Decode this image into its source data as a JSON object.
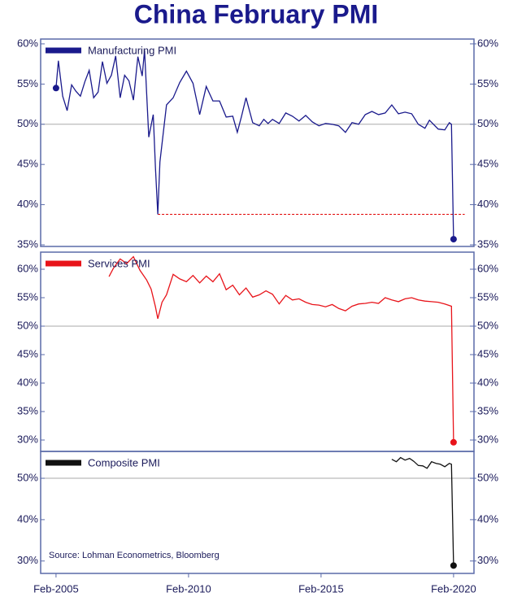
{
  "chart_data": [
    {
      "type": "line",
      "title": "China February PMI",
      "x": [
        2005.08,
        2005.17,
        2005.33,
        2005.5,
        2005.67,
        2005.83,
        2006.0,
        2006.17,
        2006.33,
        2006.5,
        2006.67,
        2006.83,
        2007.0,
        2007.17,
        2007.33,
        2007.5,
        2007.67,
        2007.83,
        2008.0,
        2008.17,
        2008.33,
        2008.42,
        2008.58,
        2008.75,
        2008.83,
        2008.92,
        2009.0,
        2009.25,
        2009.5,
        2009.75,
        2010.0,
        2010.25,
        2010.5,
        2010.75,
        2011.0,
        2011.25,
        2011.5,
        2011.75,
        2011.92,
        2012.08,
        2012.25,
        2012.5,
        2012.75,
        2012.92,
        2013.08,
        2013.25,
        2013.5,
        2013.75,
        2014.0,
        2014.25,
        2014.5,
        2014.75,
        2015.0,
        2015.25,
        2015.5,
        2015.75,
        2016.0,
        2016.25,
        2016.5,
        2016.75,
        2017.0,
        2017.25,
        2017.5,
        2017.75,
        2018.0,
        2018.25,
        2018.5,
        2018.75,
        2019.0,
        2019.17,
        2019.5,
        2019.75,
        2019.92,
        2020.0,
        2020.08
      ],
      "series": [
        {
          "name": "Manufacturing PMI",
          "color": "#1a1a8c",
          "values": [
            54.5,
            57.9,
            53.5,
            51.7,
            54.9,
            54.1,
            53.5,
            55.3,
            56.7,
            53.3,
            54.0,
            57.8,
            55.1,
            56.1,
            58.5,
            53.3,
            56.1,
            55.4,
            53.0,
            58.4,
            56.0,
            59.2,
            48.4,
            51.2,
            44.6,
            38.8,
            45.3,
            52.4,
            53.3,
            55.2,
            56.6,
            55.1,
            51.2,
            54.7,
            52.9,
            52.9,
            50.9,
            51.0,
            49.0,
            51.0,
            53.3,
            50.2,
            49.8,
            50.6,
            50.1,
            50.6,
            50.1,
            51.4,
            51.0,
            50.4,
            51.1,
            50.3,
            49.8,
            50.1,
            50.0,
            49.8,
            49.0,
            50.2,
            50.0,
            51.2,
            51.6,
            51.2,
            51.4,
            52.4,
            51.3,
            51.5,
            51.3,
            50.0,
            49.5,
            50.5,
            49.4,
            49.3,
            50.2,
            50.0,
            35.7
          ]
        }
      ],
      "start_marker": true,
      "end_marker": true,
      "xlim": [
        2004.5,
        2020.85
      ],
      "ylim": [
        34.8,
        60.6
      ],
      "yticks": [
        {
          "value": 35,
          "label": "35%"
        },
        {
          "value": 40,
          "label": "40%"
        },
        {
          "value": 45,
          "label": "45%"
        },
        {
          "value": 50,
          "label": "50%"
        },
        {
          "value": 55,
          "label": "55%"
        },
        {
          "value": 60,
          "label": "60%"
        }
      ],
      "hline": 50,
      "reference_line": {
        "value": 38.8,
        "from": 2008.92,
        "to": 2020.5,
        "color": "#e00000"
      }
    },
    {
      "type": "line",
      "x": [
        2007.08,
        2007.25,
        2007.5,
        2007.75,
        2008.0,
        2008.25,
        2008.5,
        2008.67,
        2008.83,
        2008.92,
        2009.08,
        2009.25,
        2009.5,
        2009.75,
        2010.0,
        2010.25,
        2010.5,
        2010.75,
        2011.0,
        2011.25,
        2011.5,
        2011.75,
        2012.0,
        2012.25,
        2012.5,
        2012.75,
        2013.0,
        2013.25,
        2013.5,
        2013.75,
        2014.0,
        2014.25,
        2014.5,
        2014.75,
        2015.0,
        2015.25,
        2015.5,
        2015.75,
        2016.0,
        2016.25,
        2016.5,
        2016.75,
        2017.0,
        2017.25,
        2017.5,
        2017.75,
        2018.0,
        2018.25,
        2018.5,
        2018.75,
        2019.0,
        2019.25,
        2019.5,
        2019.75,
        2020.0,
        2020.08
      ],
      "series": [
        {
          "name": "Services PMI",
          "color": "#e8141a",
          "values": [
            58.7,
            60.2,
            61.8,
            61.0,
            62.2,
            59.8,
            58.1,
            56.5,
            53.4,
            51.3,
            54.2,
            55.5,
            59.1,
            58.3,
            57.8,
            58.9,
            57.6,
            58.8,
            57.8,
            59.2,
            56.4,
            57.2,
            55.5,
            56.7,
            55.1,
            55.5,
            56.2,
            55.6,
            53.9,
            55.4,
            54.6,
            54.8,
            54.2,
            53.8,
            53.7,
            53.4,
            53.8,
            53.1,
            52.7,
            53.5,
            53.9,
            54.0,
            54.2,
            54.0,
            55.0,
            54.6,
            54.3,
            54.8,
            55.0,
            54.6,
            54.4,
            54.3,
            54.2,
            53.9,
            53.5,
            29.6
          ]
        }
      ],
      "end_marker": true,
      "xlim": [
        2004.5,
        2020.85
      ],
      "ylim": [
        28,
        63
      ],
      "yticks": [
        {
          "value": 30,
          "label": "30%"
        },
        {
          "value": 35,
          "label": "35%"
        },
        {
          "value": 40,
          "label": "40%"
        },
        {
          "value": 45,
          "label": "45%"
        },
        {
          "value": 50,
          "label": "50%"
        },
        {
          "value": 55,
          "label": "55%"
        },
        {
          "value": 60,
          "label": "60%"
        }
      ],
      "hline": 50
    },
    {
      "type": "line",
      "x": [
        2017.75,
        2017.92,
        2018.08,
        2018.25,
        2018.42,
        2018.58,
        2018.75,
        2018.92,
        2019.08,
        2019.25,
        2019.42,
        2019.58,
        2019.75,
        2019.92,
        2020.0,
        2020.08
      ],
      "series": [
        {
          "name": "Composite PMI",
          "color": "#111111",
          "values": [
            54.6,
            54.0,
            55.0,
            54.4,
            54.8,
            54.1,
            53.1,
            53.0,
            52.4,
            54.0,
            53.6,
            53.4,
            52.8,
            53.6,
            53.4,
            28.9
          ]
        }
      ],
      "end_marker": true,
      "xlim": [
        2004.5,
        2020.85
      ],
      "ylim": [
        27,
        56.5
      ],
      "yticks": [
        {
          "value": 30,
          "label": "30%"
        },
        {
          "value": 40,
          "label": "40%"
        },
        {
          "value": 50,
          "label": "50%"
        }
      ],
      "hline": 50,
      "xticks": [
        {
          "value": 2005.08,
          "label": "Feb-2005"
        },
        {
          "value": 2010.08,
          "label": "Feb-2010"
        },
        {
          "value": 2015.08,
          "label": "Feb-2015"
        },
        {
          "value": 2020.08,
          "label": "Feb-2020"
        }
      ],
      "annotation": "Source: Lohman Econometrics, Bloomberg"
    }
  ]
}
